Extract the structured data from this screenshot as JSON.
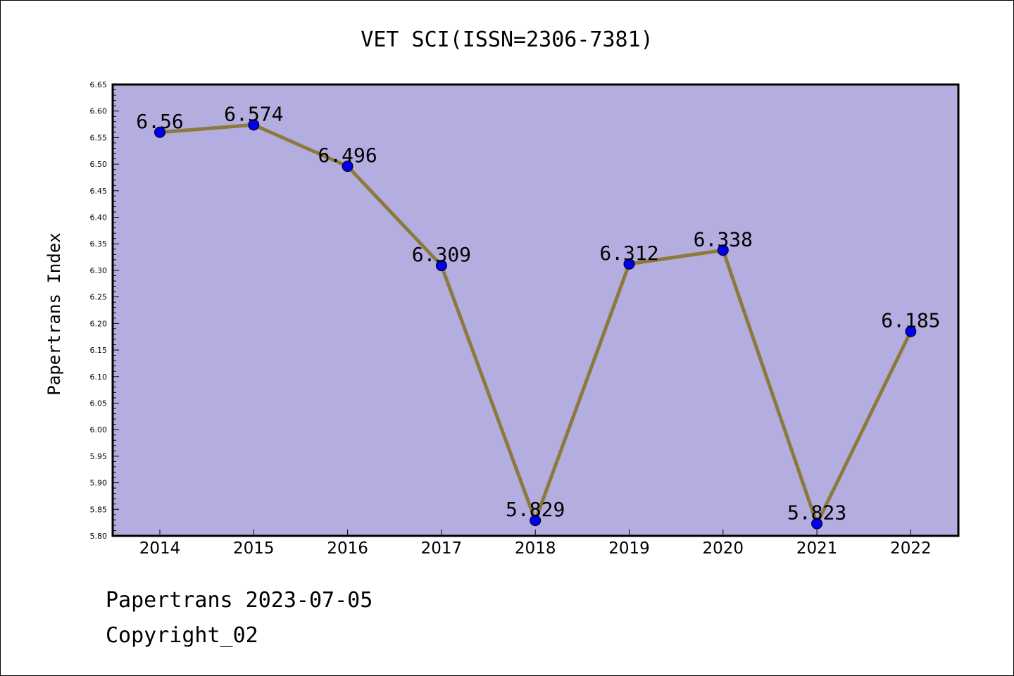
{
  "chart_data": {
    "type": "line",
    "title": "VET SCI(ISSN=2306-7381)",
    "xlabel": "",
    "ylabel": "Papertrans Index",
    "categories": [
      "2014",
      "2015",
      "2016",
      "2017",
      "2018",
      "2019",
      "2020",
      "2021",
      "2022"
    ],
    "values": [
      6.56,
      6.574,
      6.496,
      6.309,
      5.829,
      6.312,
      6.338,
      5.823,
      6.185
    ],
    "data_labels": [
      "6.56",
      "6.574",
      "6.496",
      "6.309",
      "5.829",
      "6.312",
      "6.338",
      "5.823",
      "6.185"
    ],
    "ylim": [
      5.8,
      6.65
    ],
    "yticks": [
      "5.80",
      "5.85",
      "5.90",
      "5.95",
      "6.00",
      "6.05",
      "6.10",
      "6.15",
      "6.20",
      "6.25",
      "6.30",
      "6.35",
      "6.40",
      "6.45",
      "6.50",
      "6.55",
      "6.60",
      "6.65"
    ],
    "grid": false,
    "legend": "none",
    "colors": {
      "plot_background": "#b4aee0",
      "line": "#8c7a3c",
      "marker": "#0000ee"
    }
  },
  "footer": {
    "date_line": "Papertrans 2023-07-05",
    "copyright": "Copyright_02"
  }
}
